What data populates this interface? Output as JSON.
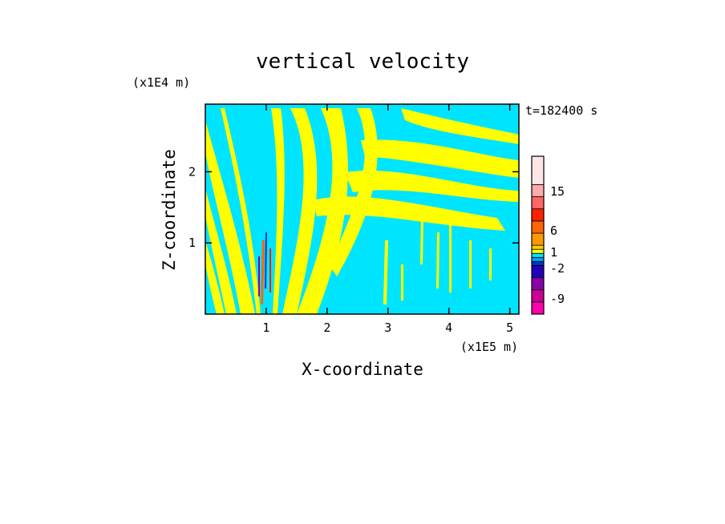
{
  "chart_data": {
    "type": "heatmap",
    "title": "vertical velocity",
    "time_label": "t=182400 s",
    "xlabel": "X-coordinate",
    "ylabel": "Z-coordinate",
    "x_unit": "(x1E5 m)",
    "y_unit": "(x1E4 m)",
    "xlim": [
      0,
      5.15
    ],
    "ylim": [
      0,
      2.95
    ],
    "x_ticks": [
      "1",
      "2",
      "3",
      "4",
      "5"
    ],
    "x_tick_values": [
      1,
      2,
      3,
      4,
      5
    ],
    "y_ticks": [
      "1",
      "2"
    ],
    "y_tick_values": [
      1,
      2
    ],
    "colorbar": {
      "labels": [
        "15",
        "6",
        "1",
        "-2",
        "-9"
      ],
      "label_values": [
        15,
        6,
        1,
        -2,
        -9
      ],
      "colors": [
        "#ff00aa",
        "#cc0099",
        "#8800aa",
        "#2200bb",
        "#0033cc",
        "#00a0ff",
        "#00e5ff",
        "#ffff00",
        "#ffd000",
        "#ff9900",
        "#ff6600",
        "#ff2200",
        "#ff6666",
        "#ffaaaa",
        "#ffe6e6"
      ]
    },
    "dominant_colors": {
      "positive": "#ffff00",
      "negative": "#00e5ff"
    }
  }
}
